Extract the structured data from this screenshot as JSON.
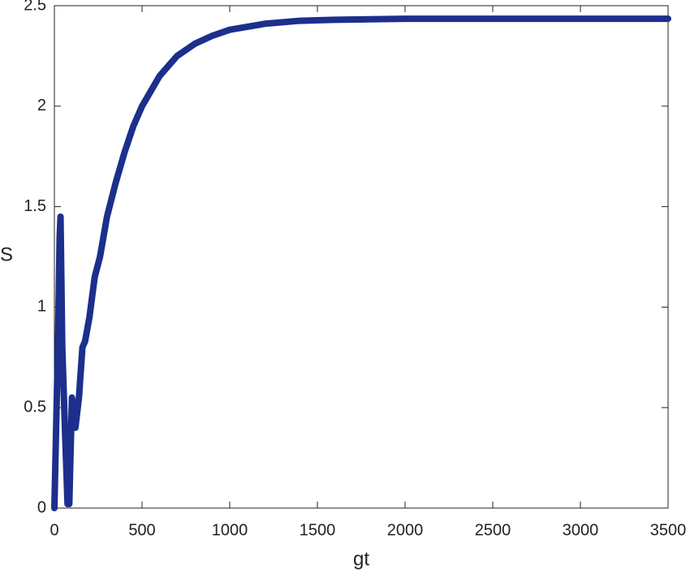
{
  "chart_data": {
    "type": "line",
    "x_label": "gt",
    "y_label": "S",
    "x": [
      0,
      10,
      20,
      30,
      35,
      45,
      60,
      75,
      85,
      100,
      120,
      140,
      160,
      175,
      200,
      230,
      260,
      300,
      350,
      400,
      450,
      500,
      600,
      700,
      800,
      900,
      1000,
      1200,
      1400,
      1600,
      2000,
      2500,
      3000,
      3500
    ],
    "values": [
      0,
      0.4,
      0.8,
      1.35,
      1.45,
      0.8,
      0.4,
      0.02,
      0.02,
      0.55,
      0.4,
      0.55,
      0.8,
      0.83,
      0.95,
      1.15,
      1.25,
      1.45,
      1.62,
      1.77,
      1.9,
      2.0,
      2.15,
      2.25,
      2.31,
      2.35,
      2.38,
      2.41,
      2.425,
      2.43,
      2.435,
      2.435,
      2.435,
      2.435
    ],
    "color": "#1c2f8c",
    "xlim": [
      0,
      3500
    ],
    "xticks": [
      0,
      500,
      1000,
      1500,
      2000,
      2500,
      3000,
      3500
    ],
    "ylim": [
      0,
      2.5
    ],
    "yticks": [
      0,
      0.5,
      1,
      1.5,
      2,
      2.5
    ],
    "grid": false
  }
}
